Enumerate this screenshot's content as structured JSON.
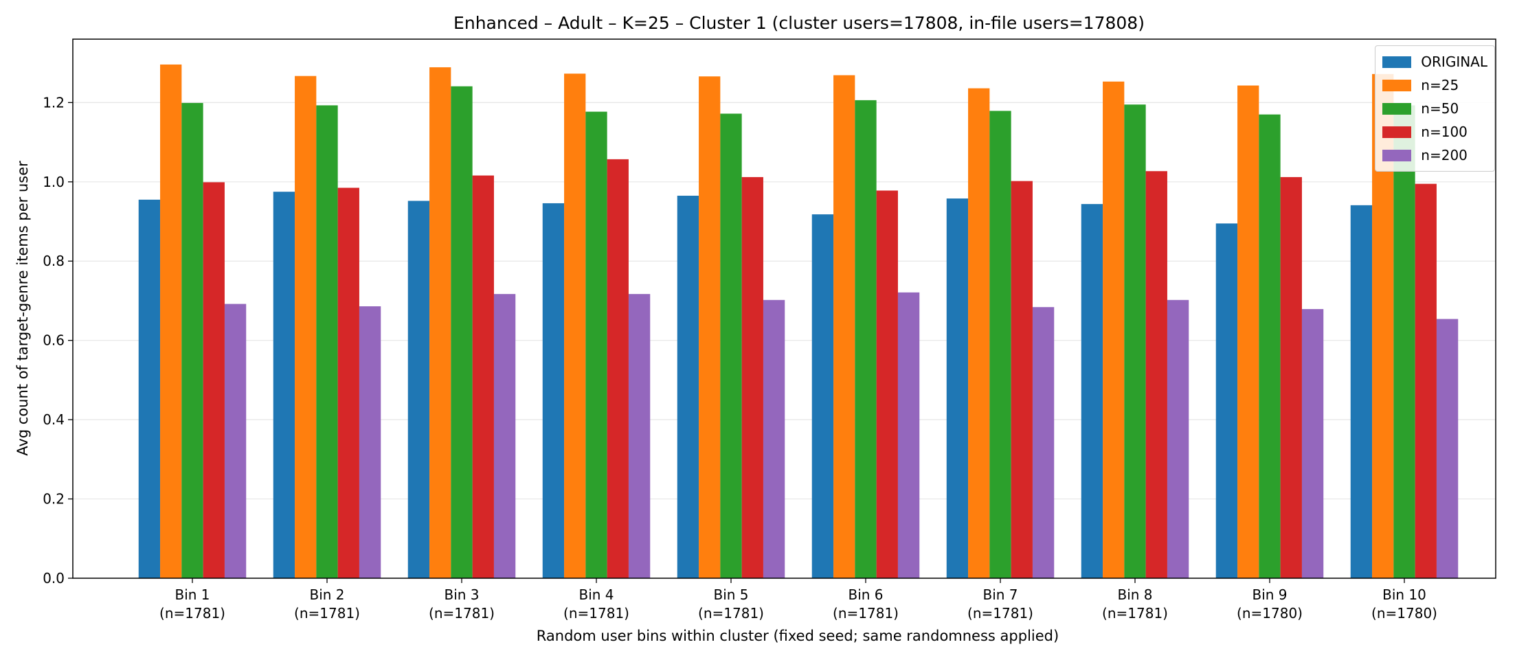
{
  "chart_data": {
    "type": "bar",
    "title": "Enhanced – Adult – K=25 – Cluster 1 (cluster users=17808, in-file users=17808)",
    "xlabel": "Random user bins within cluster (fixed seed; same randomness applied)",
    "ylabel": "Avg count of target-genre items per user",
    "ylim": [
      0,
      1.36
    ],
    "yticks": [
      "0.0",
      "0.2",
      "0.4",
      "0.6",
      "0.8",
      "1.0",
      "1.2"
    ],
    "grid": "y",
    "legend_position": "top-right",
    "categories": [
      {
        "line1": "Bin 1",
        "line2": "(n=1781)"
      },
      {
        "line1": "Bin 2",
        "line2": "(n=1781)"
      },
      {
        "line1": "Bin 3",
        "line2": "(n=1781)"
      },
      {
        "line1": "Bin 4",
        "line2": "(n=1781)"
      },
      {
        "line1": "Bin 5",
        "line2": "(n=1781)"
      },
      {
        "line1": "Bin 6",
        "line2": "(n=1781)"
      },
      {
        "line1": "Bin 7",
        "line2": "(n=1781)"
      },
      {
        "line1": "Bin 8",
        "line2": "(n=1781)"
      },
      {
        "line1": "Bin 9",
        "line2": "(n=1780)"
      },
      {
        "line1": "Bin 10",
        "line2": "(n=1780)"
      }
    ],
    "series": [
      {
        "name": "ORIGINAL",
        "color": "#1f77b4",
        "values": [
          0.955,
          0.975,
          0.952,
          0.946,
          0.965,
          0.918,
          0.958,
          0.944,
          0.895,
          0.941
        ]
      },
      {
        "name": "n=25",
        "color": "#ff7f0e",
        "values": [
          1.296,
          1.267,
          1.289,
          1.273,
          1.266,
          1.269,
          1.236,
          1.253,
          1.243,
          1.272
        ]
      },
      {
        "name": "n=50",
        "color": "#2ca02c",
        "values": [
          1.199,
          1.193,
          1.241,
          1.177,
          1.172,
          1.206,
          1.179,
          1.195,
          1.17,
          1.193
        ]
      },
      {
        "name": "n=100",
        "color": "#d62728",
        "values": [
          0.999,
          0.985,
          1.016,
          1.057,
          1.012,
          0.978,
          1.002,
          1.027,
          1.012,
          0.995
        ]
      },
      {
        "name": "n=200",
        "color": "#9467bd",
        "values": [
          0.692,
          0.686,
          0.717,
          0.717,
          0.702,
          0.721,
          0.684,
          0.702,
          0.679,
          0.654
        ]
      }
    ]
  }
}
